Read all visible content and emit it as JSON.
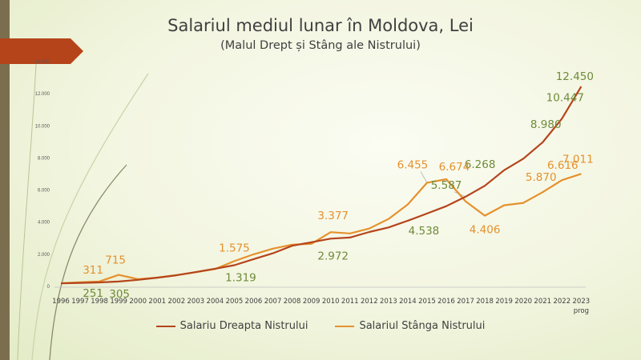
{
  "chart_data": {
    "type": "line",
    "title": "Salariul mediul lunar în Moldova, Lei",
    "subtitle": "(Malul Drept și Stâng ale Nistrului)",
    "categories": [
      "1996",
      "1997",
      "1998",
      "1999",
      "2000",
      "2001",
      "2002",
      "2003",
      "2004",
      "2005",
      "2006",
      "2007",
      "2008",
      "2009",
      "2010",
      "2011",
      "2012",
      "2013",
      "2014",
      "2015",
      "2016",
      "2017",
      "2018",
      "2019",
      "2020",
      "2021",
      "2022",
      "2023 prog"
    ],
    "x_labels_top": [
      "1996",
      "1997",
      "1998",
      "1999",
      "2000",
      "2001",
      "2002",
      "2003",
      "2004",
      "2005",
      "2006",
      "2007",
      "2008",
      "2009",
      "2010",
      "2011",
      "2012",
      "2013",
      "2014",
      "2015",
      "2016",
      "2017",
      "2018",
      "2019",
      "2020",
      "2021",
      "2022",
      "2023"
    ],
    "x_label_extra": "prog",
    "yticks": [
      "0",
      "2.000",
      "4.000",
      "6.000",
      "8.000",
      "10.000",
      "12.000",
      "14.000"
    ],
    "ylim": [
      0,
      14000
    ],
    "legend_position": "bottom",
    "grid": false,
    "series": [
      {
        "name": "Salariu Dreapta Nistrului",
        "color": "#b5441b",
        "values": [
          187,
          219,
          251,
          305,
          408,
          544,
          691,
          890,
          1103,
          1319,
          1697,
          2065,
          2530,
          2748,
          2972,
          3042,
          3386,
          3674,
          4089,
          4538,
          4998,
          5587,
          6268,
          7233,
          7956,
          8980,
          10447,
          12450
        ]
      },
      {
        "name": "Salariul Stânga Nistrului",
        "color": "#e5912d",
        "values": [
          200,
          260,
          311,
          715,
          450,
          550,
          700,
          880,
          1080,
          1575,
          2000,
          2350,
          2600,
          2650,
          3377,
          3300,
          3600,
          4200,
          5100,
          6455,
          6674,
          5300,
          4406,
          5050,
          5200,
          5870,
          6616,
          7011
        ]
      }
    ],
    "data_labels": [
      {
        "series": 0,
        "index": 2,
        "text": "251"
      },
      {
        "series": 0,
        "index": 3,
        "text": "305"
      },
      {
        "series": 0,
        "index": 9,
        "text": "1.319"
      },
      {
        "series": 0,
        "index": 14,
        "text": "2.972"
      },
      {
        "series": 0,
        "index": 19,
        "text": "4.538"
      },
      {
        "series": 0,
        "index": 21,
        "text": "5.587"
      },
      {
        "series": 0,
        "index": 22,
        "text": "6.268"
      },
      {
        "series": 0,
        "index": 25,
        "text": "8.980"
      },
      {
        "series": 0,
        "index": 26,
        "text": "10.447"
      },
      {
        "series": 0,
        "index": 27,
        "text": "12.450"
      },
      {
        "series": 1,
        "index": 2,
        "text": "311"
      },
      {
        "series": 1,
        "index": 3,
        "text": "715"
      },
      {
        "series": 1,
        "index": 9,
        "text": "1.575"
      },
      {
        "series": 1,
        "index": 14,
        "text": "3.377"
      },
      {
        "series": 1,
        "index": 19,
        "text": "6.455"
      },
      {
        "series": 1,
        "index": 20,
        "text": "6.674"
      },
      {
        "series": 1,
        "index": 22,
        "text": "4.406"
      },
      {
        "series": 1,
        "index": 25,
        "text": "5.870"
      },
      {
        "series": 1,
        "index": 26,
        "text": "6.616"
      },
      {
        "series": 1,
        "index": 27,
        "text": "7.011"
      }
    ]
  },
  "theme": {
    "accent_arrow": "#b5441b",
    "label_green": "#6f8a3a"
  }
}
